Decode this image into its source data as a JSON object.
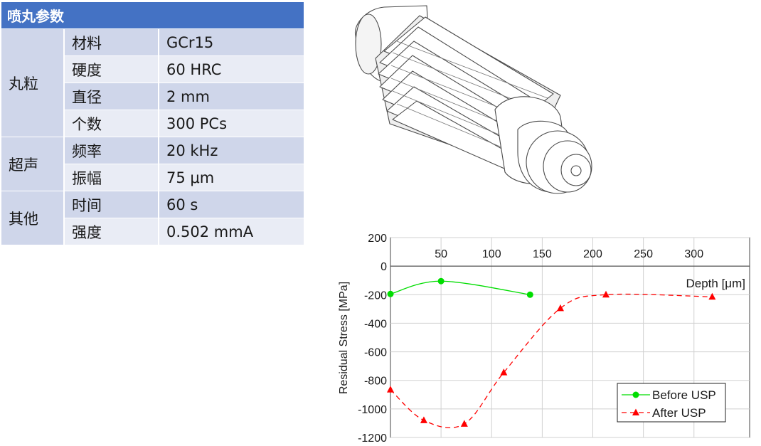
{
  "table": {
    "title": "喷丸参数",
    "groups": [
      {
        "name": "丸粒",
        "rows": [
          {
            "param": "材料",
            "value": "GCr15"
          },
          {
            "param": "硬度",
            "value": "60 HRC"
          },
          {
            "param": "直径",
            "value": "2 mm"
          },
          {
            "param": "个数",
            "value": "300 PCs"
          }
        ]
      },
      {
        "name": "超声",
        "rows": [
          {
            "param": "频率",
            "value": "20 kHz"
          },
          {
            "param": "振幅",
            "value": "75 μm"
          }
        ]
      },
      {
        "name": "其他",
        "rows": [
          {
            "param": "时间",
            "value": "60 s"
          },
          {
            "param": "强度",
            "value": "0.502 mmA"
          }
        ]
      }
    ]
  },
  "chart_data": {
    "type": "line",
    "title": "",
    "xlabel": "Depth [μm]",
    "ylabel": "Residual Stress [MPa]",
    "xlim": [
      0,
      355
    ],
    "ylim": [
      -1200,
      200
    ],
    "xticks": [
      50,
      100,
      150,
      200,
      250,
      300
    ],
    "yticks": [
      200,
      0,
      -200,
      -400,
      -600,
      -800,
      -1000,
      -1200
    ],
    "grid": true,
    "legend_position": "bottom-right",
    "series": [
      {
        "name": "Before USP",
        "color": "#00dd00",
        "line_style": "solid",
        "marker": "circle",
        "x": [
          0,
          50,
          138
        ],
        "y": [
          -195,
          -105,
          -200
        ]
      },
      {
        "name": "After USP",
        "color": "#ff0000",
        "line_style": "dashed",
        "marker": "triangle",
        "x": [
          0,
          33,
          73,
          112,
          168,
          213,
          318
        ],
        "y": [
          -865,
          -1080,
          -1105,
          -745,
          -295,
          -200,
          -215
        ]
      }
    ]
  }
}
